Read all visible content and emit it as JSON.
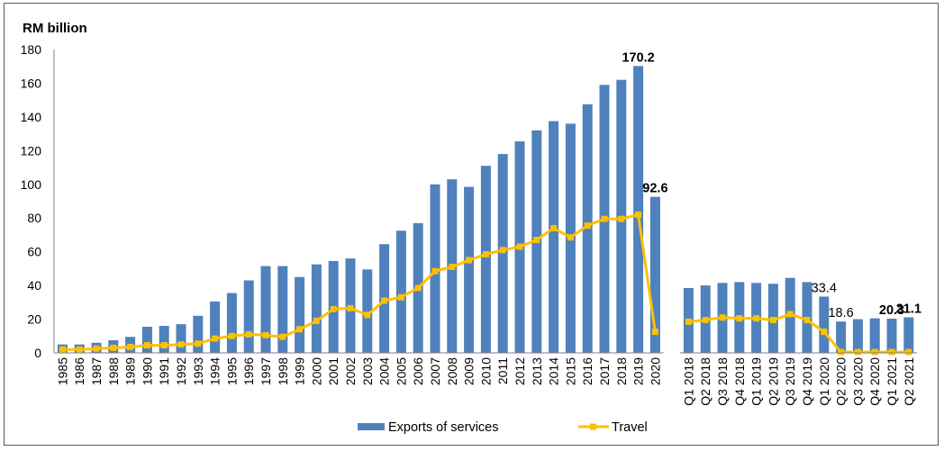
{
  "chart_data": {
    "type": "bar",
    "title": "",
    "ylabel": "RM billion",
    "xlabel": "",
    "ylim": [
      0,
      180
    ],
    "yticks": [
      0,
      20,
      40,
      60,
      80,
      100,
      120,
      140,
      160,
      180
    ],
    "grid": false,
    "legend_position": "bottom",
    "legend": [
      {
        "name": "Exports of services",
        "type": "bar",
        "color": "#4F81BD"
      },
      {
        "name": "Travel",
        "type": "line",
        "color": "#FFC000"
      }
    ],
    "panels": [
      {
        "name": "annual",
        "categories": [
          "1985",
          "1986",
          "1987",
          "1988",
          "1989",
          "1990",
          "1991",
          "1992",
          "1993",
          "1994",
          "1995",
          "1996",
          "1997",
          "1998",
          "1999",
          "2000",
          "2001",
          "2002",
          "2003",
          "2004",
          "2005",
          "2006",
          "2007",
          "2008",
          "2009",
          "2010",
          "2011",
          "2012",
          "2013",
          "2014",
          "2015",
          "2016",
          "2017",
          "2018",
          "2019",
          "2020"
        ],
        "series": [
          {
            "name": "Exports of services",
            "type": "bar",
            "values": [
              5,
              5,
              6,
              7.5,
              9.5,
              15.5,
              16,
              17,
              22,
              30.5,
              35.5,
              43,
              51.5,
              51.5,
              45,
              52.5,
              54.5,
              56,
              49.5,
              64.5,
              72.5,
              77,
              100,
              103,
              98.5,
              111,
              118,
              125.5,
              132,
              137.5,
              136,
              147.5,
              159,
              162,
              170.2,
              92.6
            ]
          },
          {
            "name": "Travel",
            "type": "line",
            "values": [
              2,
              2,
              2.5,
              3,
              3.5,
              4.5,
              4.5,
              5,
              5.5,
              8.5,
              10,
              11,
              10.5,
              9.5,
              14,
              19,
              26,
              26.5,
              22.5,
              31,
              33,
              38.5,
              48.5,
              51,
              55,
              58.5,
              61,
              63,
              67,
              74,
              68.5,
              75.5,
              79.5,
              79.5,
              82,
              12.5
            ]
          }
        ],
        "data_labels": [
          {
            "category": "2019",
            "series": "Exports of services",
            "text": "170.2",
            "bold": true
          },
          {
            "category": "2020",
            "series": "Exports of services",
            "text": "92.6",
            "bold": true
          }
        ]
      },
      {
        "name": "quarterly",
        "categories": [
          "Q1 2018",
          "Q2 2018",
          "Q3 2018",
          "Q4 2018",
          "Q1 2019",
          "Q2 2019",
          "Q3 2019",
          "Q4 2019",
          "Q1 2020",
          "Q2 2020",
          "Q3 2020",
          "Q4 2020",
          "Q1 2021",
          "Q2 2021"
        ],
        "series": [
          {
            "name": "Exports of services",
            "type": "bar",
            "values": [
              38.5,
              40,
              41.5,
              42,
              41.5,
              41,
              44.5,
              42,
              33.4,
              18.6,
              20,
              20.5,
              20.3,
              21.1
            ]
          },
          {
            "name": "Travel",
            "type": "line",
            "values": [
              18.5,
              19.5,
              21,
              20.5,
              20.5,
              19.5,
              23,
              19.5,
              12.5,
              0.5,
              0.5,
              0.5,
              0.5,
              0.5
            ]
          }
        ],
        "data_labels": [
          {
            "category": "Q1 2020",
            "series": "Exports of services",
            "text": "33.4",
            "bold": false
          },
          {
            "category": "Q2 2020",
            "series": "Exports of services",
            "text": "18.6",
            "bold": false
          },
          {
            "category": "Q1 2021",
            "series": "Exports of services",
            "text": "20.3",
            "bold": true
          },
          {
            "category": "Q2 2021",
            "series": "Exports of services",
            "text": "21.1",
            "bold": true
          }
        ]
      }
    ]
  }
}
